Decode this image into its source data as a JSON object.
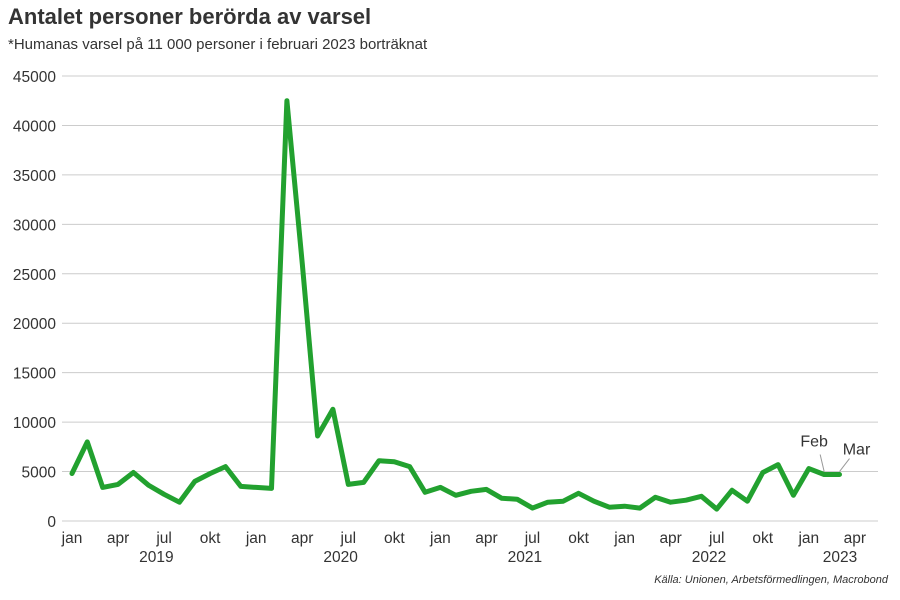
{
  "chart_data": {
    "type": "line",
    "title": "Antalet personer berörda av varsel",
    "subtitle": "*Humanas varsel på 11 000 personer i februari 2023 borträknat",
    "source": "Källa: Unionen, Arbetsförmedlingen, Macrobond",
    "ylim": [
      0,
      45000
    ],
    "y_ticks": [
      "0",
      "5000",
      "10000",
      "15000",
      "20000",
      "25000",
      "30000",
      "35000",
      "40000",
      "45000"
    ],
    "y_tick_values": [
      0,
      5000,
      10000,
      15000,
      20000,
      25000,
      30000,
      35000,
      40000,
      45000
    ],
    "x_month_labels": [
      "jan",
      "apr",
      "jul",
      "okt",
      "jan",
      "apr",
      "jul",
      "okt",
      "jan",
      "apr",
      "jul",
      "okt",
      "jan",
      "apr",
      "jul",
      "okt",
      "jan",
      "apr"
    ],
    "x_year_labels": [
      "2019",
      "2020",
      "2021",
      "2022",
      "2023"
    ],
    "grid": true,
    "line_color": "#22a12f",
    "grid_color": "#cccccc",
    "x": [
      "2019-01",
      "2019-02",
      "2019-03",
      "2019-04",
      "2019-05",
      "2019-06",
      "2019-07",
      "2019-08",
      "2019-09",
      "2019-10",
      "2019-11",
      "2019-12",
      "2020-01",
      "2020-02",
      "2020-03",
      "2020-04",
      "2020-05",
      "2020-06",
      "2020-07",
      "2020-08",
      "2020-09",
      "2020-10",
      "2020-11",
      "2020-12",
      "2021-01",
      "2021-02",
      "2021-03",
      "2021-04",
      "2021-05",
      "2021-06",
      "2021-07",
      "2021-08",
      "2021-09",
      "2021-10",
      "2021-11",
      "2021-12",
      "2022-01",
      "2022-02",
      "2022-03",
      "2022-04",
      "2022-05",
      "2022-06",
      "2022-07",
      "2022-08",
      "2022-09",
      "2022-10",
      "2022-11",
      "2022-12",
      "2023-01",
      "2023-02",
      "2023-03"
    ],
    "values": [
      4800,
      8000,
      3400,
      3700,
      4900,
      3600,
      2700,
      1900,
      4000,
      4800,
      5500,
      3500,
      3400,
      3300,
      42500,
      26000,
      8600,
      11300,
      3700,
      3900,
      6100,
      6000,
      5500,
      2900,
      3400,
      2600,
      3000,
      3200,
      2300,
      2200,
      1300,
      1900,
      2000,
      2800,
      2000,
      1400,
      1500,
      1300,
      2400,
      1900,
      2100,
      2500,
      1200,
      3100,
      2000,
      4900,
      5700,
      2600,
      5300,
      4700,
      4700
    ],
    "annotations": [
      {
        "text": "Feb",
        "x": "2023-02"
      },
      {
        "text": "Mar",
        "x": "2023-03"
      }
    ]
  }
}
